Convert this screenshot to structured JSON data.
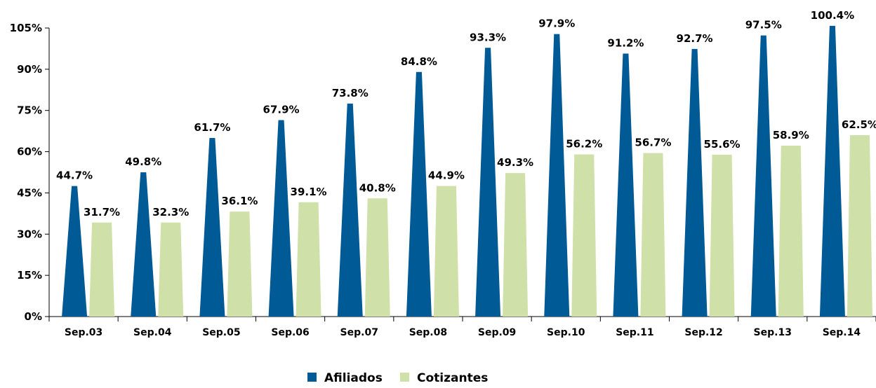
{
  "chart_data": {
    "type": "bar",
    "categories": [
      "Sep.03",
      "Sep.04",
      "Sep.05",
      "Sep.06",
      "Sep.07",
      "Sep.08",
      "Sep.09",
      "Sep.10",
      "Sep.11",
      "Sep.12",
      "Sep.13",
      "Sep.14"
    ],
    "series": [
      {
        "name": "Afiliados",
        "color": "#005a96",
        "values": [
          44.7,
          49.8,
          61.7,
          67.9,
          73.8,
          84.8,
          93.3,
          97.9,
          91.2,
          92.7,
          97.5,
          100.4
        ],
        "labels": [
          "44.7%",
          "49.8%",
          "61.7%",
          "67.9%",
          "73.8%",
          "84.8%",
          "93.3%",
          "97.9%",
          "91.2%",
          "92.7%",
          "97.5%",
          "100.4%"
        ],
        "drawn_values": [
          47.5,
          52.5,
          65,
          71.5,
          77.5,
          89,
          97.8,
          102.8,
          95.7,
          97.4,
          102.3,
          105.8
        ]
      },
      {
        "name": "Cotizantes",
        "color": "#cfe0a8",
        "values": [
          31.7,
          32.3,
          36.1,
          39.1,
          40.8,
          44.9,
          49.3,
          56.2,
          56.7,
          55.6,
          58.9,
          62.5
        ],
        "labels": [
          "31.7%",
          "32.3%",
          "36.1%",
          "39.1%",
          "40.8%",
          "44.9%",
          "49.3%",
          "56.2%",
          "56.7%",
          "55.6%",
          "58.9%",
          "62.5%"
        ],
        "drawn_values": [
          34.2,
          34.2,
          38.2,
          41.6,
          43,
          47.5,
          52.2,
          59,
          59.5,
          58.9,
          62.2,
          66
        ]
      }
    ],
    "y_ticks": [
      "0%",
      "15%",
      "30%",
      "45%",
      "60%",
      "75%",
      "90%",
      "105%"
    ],
    "ylim": [
      0,
      105
    ],
    "grid": false,
    "legend": {
      "position": "bottom",
      "items": [
        "Afiliados",
        "Cotizantes"
      ]
    },
    "title": "",
    "xlabel": "",
    "ylabel": ""
  }
}
